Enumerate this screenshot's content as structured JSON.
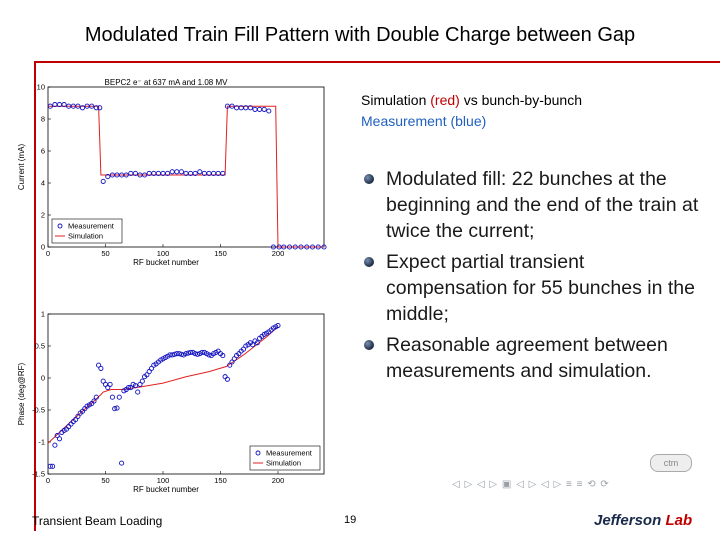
{
  "slide": {
    "title": "Modulated Train Fill Pattern with Double Charge between Gap",
    "footer_left": "Transient Beam Loading",
    "page_number": "19",
    "logo_text": "Jefferson",
    "logo_lab": "Lab",
    "badge_text": "ctm",
    "nav_text": "◁ ▷ ◁ ▷ ▣ ◁ ▷ ◁ ▷ ≡ ≡ ⟲ ⟳"
  },
  "note": {
    "part1": "Simulation ",
    "red_word": "(red)",
    "part2": " vs bunch-by-bunch",
    "line2": "Measurement (blue)"
  },
  "bullets": [
    "Modulated fill: 22 bunches at the beginning and the end of the train at twice the current;",
    "Expect partial transient compensation for 55 bunches in the middle;",
    "Reasonable agreement between measurements and simulation."
  ],
  "colors": {
    "accent": "#c00000",
    "measurement": "#1010c0",
    "simulation": "#e02020"
  },
  "chart_data": [
    {
      "type": "scatter",
      "title": "BEPC2 e⁻ at 637 mA and 1.08 MV",
      "xlabel": "RF bucket number",
      "ylabel": "Current (mA)",
      "xlim": [
        0,
        240
      ],
      "ylim": [
        0,
        10
      ],
      "xticks": [
        "0",
        "50",
        "100",
        "150",
        "200"
      ],
      "yticks": [
        "0",
        "2",
        "4",
        "6",
        "8",
        "10"
      ],
      "legend_placement": "bottom-left",
      "legend": [
        "Measurement",
        "Simulation"
      ],
      "series": [
        {
          "name": "Measurement",
          "x": [
            2,
            6,
            10,
            14,
            18,
            22,
            26,
            30,
            34,
            38,
            42,
            45,
            48,
            52,
            56,
            60,
            64,
            68,
            72,
            76,
            80,
            84,
            88,
            92,
            96,
            100,
            104,
            108,
            112,
            116,
            120,
            124,
            128,
            132,
            136,
            140,
            144,
            148,
            152,
            156,
            160,
            164,
            168,
            172,
            176,
            180,
            184,
            188,
            192,
            196,
            201,
            205,
            210,
            215,
            220,
            225,
            230,
            235,
            240
          ],
          "y": [
            8.8,
            8.9,
            8.9,
            8.9,
            8.8,
            8.8,
            8.8,
            8.7,
            8.8,
            8.8,
            8.7,
            8.7,
            4.1,
            4.4,
            4.5,
            4.5,
            4.5,
            4.5,
            4.6,
            4.6,
            4.5,
            4.5,
            4.6,
            4.6,
            4.6,
            4.6,
            4.6,
            4.7,
            4.7,
            4.7,
            4.6,
            4.6,
            4.6,
            4.7,
            4.6,
            4.6,
            4.6,
            4.6,
            4.6,
            8.8,
            8.8,
            8.7,
            8.7,
            8.7,
            8.7,
            8.6,
            8.6,
            8.6,
            8.5,
            0.0,
            0.0,
            0.0,
            0.0,
            0.0,
            0.0,
            0.0,
            0.0,
            0.0,
            0.0
          ]
        },
        {
          "name": "Simulation",
          "x": [
            0,
            44,
            46,
            154,
            156,
            198,
            200,
            240
          ],
          "y": [
            8.8,
            8.8,
            4.5,
            4.5,
            8.8,
            8.8,
            0,
            0
          ]
        }
      ]
    },
    {
      "type": "scatter",
      "xlabel": "RF bucket number",
      "ylabel": "Phase (deg@RF)",
      "xlim": [
        0,
        240
      ],
      "ylim": [
        -1.5,
        1
      ],
      "xticks": [
        "0",
        "50",
        "100",
        "150",
        "200"
      ],
      "yticks": [
        "-1.5",
        "-1",
        "-0.5",
        "0",
        "0.5",
        "1"
      ],
      "legend_placement": "bottom-right",
      "legend": [
        "Measurement",
        "Simulation"
      ],
      "series": [
        {
          "name": "Measurement",
          "x": [
            2,
            4,
            6,
            8,
            10,
            12,
            14,
            16,
            18,
            20,
            22,
            24,
            26,
            28,
            30,
            32,
            34,
            36,
            38,
            40,
            42,
            44,
            46,
            48,
            50,
            52,
            54,
            56,
            58,
            60,
            62,
            64,
            66,
            68,
            70,
            72,
            74,
            76,
            78,
            80,
            82,
            84,
            86,
            88,
            90,
            92,
            94,
            96,
            98,
            100,
            102,
            104,
            106,
            108,
            110,
            112,
            114,
            116,
            118,
            120,
            122,
            124,
            126,
            128,
            130,
            132,
            134,
            136,
            138,
            140,
            142,
            144,
            146,
            148,
            150,
            152,
            154,
            156,
            158,
            160,
            162,
            164,
            166,
            168,
            170,
            172,
            174,
            176,
            178,
            180,
            182,
            184,
            186,
            188,
            190,
            192,
            194,
            196,
            198,
            200
          ],
          "y": [
            -1.38,
            -1.38,
            -1.05,
            -0.9,
            -0.95,
            -0.85,
            -0.82,
            -0.8,
            -0.76,
            -0.72,
            -0.68,
            -0.65,
            -0.6,
            -0.55,
            -0.52,
            -0.48,
            -0.44,
            -0.42,
            -0.4,
            -0.36,
            -0.3,
            0.2,
            0.15,
            -0.05,
            -0.1,
            -0.15,
            -0.1,
            -0.3,
            -0.48,
            -0.47,
            -0.3,
            -1.33,
            -0.2,
            -0.18,
            -0.15,
            -0.15,
            -0.1,
            -0.12,
            -0.22,
            -0.1,
            -0.05,
            0.02,
            0.05,
            0.1,
            0.15,
            0.2,
            0.22,
            0.25,
            0.28,
            0.3,
            0.32,
            0.34,
            0.36,
            0.36,
            0.37,
            0.38,
            0.38,
            0.37,
            0.36,
            0.38,
            0.39,
            0.4,
            0.4,
            0.38,
            0.37,
            0.38,
            0.4,
            0.4,
            0.38,
            0.36,
            0.35,
            0.38,
            0.4,
            0.42,
            0.38,
            0.35,
            0.02,
            -0.02,
            0.2,
            0.25,
            0.3,
            0.35,
            0.38,
            0.42,
            0.45,
            0.5,
            0.52,
            0.55,
            0.52,
            0.58,
            0.55,
            0.62,
            0.65,
            0.68,
            0.7,
            0.72,
            0.75,
            0.78,
            0.8,
            0.82
          ]
        },
        {
          "name": "Simulation",
          "x": [
            0,
            10,
            20,
            30,
            40,
            46,
            48,
            55,
            65,
            80,
            100,
            120,
            140,
            155,
            160,
            170,
            180,
            190,
            200
          ],
          "y": [
            -1.02,
            -0.85,
            -0.68,
            -0.52,
            -0.36,
            -0.26,
            -0.22,
            -0.18,
            -0.18,
            -0.14,
            -0.08,
            0.02,
            0.1,
            0.18,
            0.24,
            0.36,
            0.5,
            0.64,
            0.8
          ]
        }
      ]
    }
  ]
}
